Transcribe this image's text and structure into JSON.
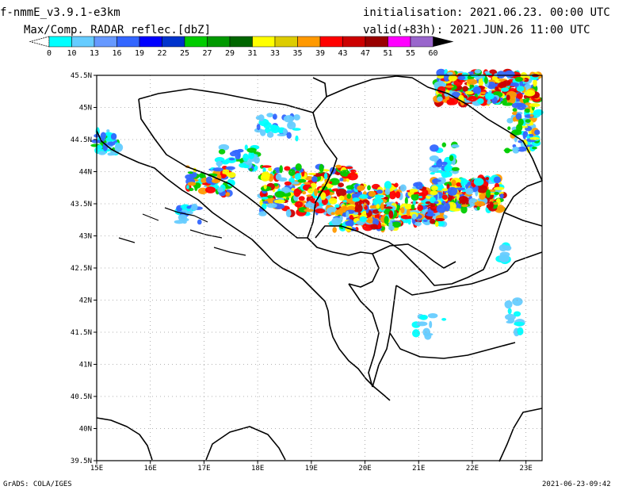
{
  "header": {
    "model": "f-nmmE_v3.9.1-e3km",
    "product": "Max/Comp. RADAR reflec.[dbZ]",
    "initialisation": "initialisation: 2021.06.23. 00:00 UTC",
    "valid": "valid(+83h): 2021.JUN.26 11:00 UTC"
  },
  "colorbar": {
    "labels": [
      "0",
      "10",
      "13",
      "16",
      "19",
      "22",
      "25",
      "27",
      "29",
      "31",
      "33",
      "35",
      "39",
      "43",
      "47",
      "51",
      "55",
      "60"
    ],
    "colors": [
      "#00ffff",
      "#66ccff",
      "#6699ff",
      "#3366ff",
      "#0000ff",
      "#0033cc",
      "#00cc00",
      "#009900",
      "#006600",
      "#ffff00",
      "#ddcc00",
      "#ff9900",
      "#ff0000",
      "#cc0000",
      "#990000",
      "#ff00ff",
      "#9966cc",
      "#000000"
    ]
  },
  "map": {
    "lat_labels": [
      "45.5N",
      "45N",
      "44.5N",
      "44N",
      "43.5N",
      "43N",
      "42.5N",
      "42N",
      "41.5N",
      "41N",
      "40.5N",
      "40N",
      "39.5N"
    ],
    "lon_labels": [
      "15E",
      "16E",
      "17E",
      "18E",
      "19E",
      "20E",
      "21E",
      "22E",
      "23E"
    ],
    "lat_range": [
      39.5,
      45.5
    ],
    "lon_range": [
      15,
      23.3
    ]
  },
  "footer": {
    "credit": "GrADS: COLA/IGES",
    "timestamp": "2021-06-23-09:42"
  }
}
